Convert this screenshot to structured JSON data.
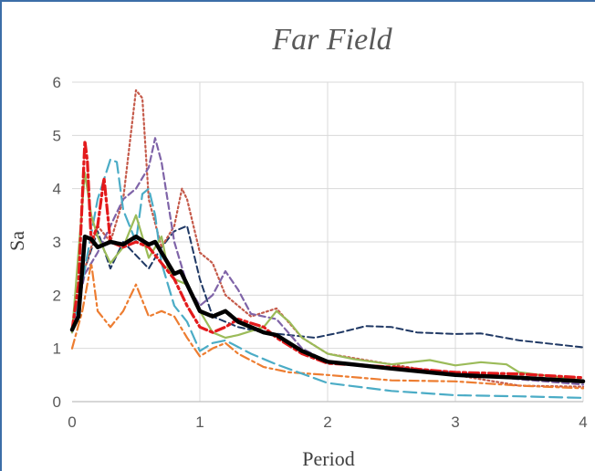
{
  "chart_data": {
    "type": "line",
    "title": "Far Field",
    "xlabel": "Period",
    "ylabel": "Sa",
    "xlim": [
      0,
      4
    ],
    "ylim": [
      0,
      6
    ],
    "x_ticks": [
      "0",
      "1",
      "2",
      "3",
      "4"
    ],
    "y_ticks": [
      "0",
      "1",
      "2",
      "3",
      "4",
      "5",
      "6"
    ],
    "grid": true,
    "legend": "none",
    "series": [
      {
        "color": "#000000",
        "style": "solid",
        "width": 4.5,
        "points": [
          [
            0,
            1.35
          ],
          [
            0.05,
            1.6
          ],
          [
            0.1,
            3.1
          ],
          [
            0.15,
            3.05
          ],
          [
            0.2,
            2.9
          ],
          [
            0.3,
            3.0
          ],
          [
            0.4,
            2.95
          ],
          [
            0.5,
            3.1
          ],
          [
            0.6,
            2.95
          ],
          [
            0.65,
            3.0
          ],
          [
            0.75,
            2.6
          ],
          [
            0.8,
            2.4
          ],
          [
            0.85,
            2.45
          ],
          [
            0.9,
            2.2
          ],
          [
            1.0,
            1.7
          ],
          [
            1.1,
            1.6
          ],
          [
            1.2,
            1.7
          ],
          [
            1.3,
            1.5
          ],
          [
            1.5,
            1.3
          ],
          [
            1.6,
            1.25
          ],
          [
            1.8,
            0.95
          ],
          [
            2.0,
            0.75
          ],
          [
            2.5,
            0.62
          ],
          [
            3.0,
            0.5
          ],
          [
            3.5,
            0.45
          ],
          [
            4.0,
            0.38
          ]
        ]
      },
      {
        "color": "#1f3864",
        "style": "dash",
        "width": 2,
        "points": [
          [
            0,
            1.3
          ],
          [
            0.1,
            2.5
          ],
          [
            0.2,
            3.2
          ],
          [
            0.3,
            2.5
          ],
          [
            0.4,
            3.0
          ],
          [
            0.6,
            2.5
          ],
          [
            0.7,
            2.9
          ],
          [
            0.8,
            3.2
          ],
          [
            0.9,
            3.3
          ],
          [
            0.95,
            2.8
          ],
          [
            1.0,
            2.3
          ],
          [
            1.1,
            1.6
          ],
          [
            1.3,
            1.4
          ],
          [
            1.5,
            1.3
          ],
          [
            1.7,
            1.25
          ],
          [
            1.9,
            1.2
          ],
          [
            2.1,
            1.3
          ],
          [
            2.3,
            1.42
          ],
          [
            2.5,
            1.4
          ],
          [
            2.7,
            1.3
          ],
          [
            3.0,
            1.27
          ],
          [
            3.2,
            1.28
          ],
          [
            3.5,
            1.15
          ],
          [
            4.0,
            1.02
          ]
        ]
      },
      {
        "color": "#c55a4a",
        "style": "dot",
        "width": 2.2,
        "points": [
          [
            0,
            1.3
          ],
          [
            0.1,
            2.5
          ],
          [
            0.2,
            3.3
          ],
          [
            0.3,
            3.0
          ],
          [
            0.4,
            3.8
          ],
          [
            0.5,
            5.85
          ],
          [
            0.55,
            5.7
          ],
          [
            0.6,
            3.8
          ],
          [
            0.7,
            2.9
          ],
          [
            0.8,
            3.3
          ],
          [
            0.86,
            4.0
          ],
          [
            0.9,
            3.8
          ],
          [
            1.0,
            2.8
          ],
          [
            1.1,
            2.6
          ],
          [
            1.2,
            2.0
          ],
          [
            1.4,
            1.6
          ],
          [
            1.6,
            1.75
          ],
          [
            1.8,
            1.2
          ],
          [
            2.0,
            0.9
          ],
          [
            2.5,
            0.7
          ],
          [
            3.0,
            0.5
          ],
          [
            3.5,
            0.3
          ],
          [
            4.0,
            0.28
          ]
        ]
      },
      {
        "color": "#7f64a8",
        "style": "dash",
        "width": 2.2,
        "points": [
          [
            0,
            1.3
          ],
          [
            0.1,
            2.4
          ],
          [
            0.2,
            2.8
          ],
          [
            0.3,
            3.3
          ],
          [
            0.4,
            3.8
          ],
          [
            0.5,
            4.0
          ],
          [
            0.6,
            4.4
          ],
          [
            0.65,
            4.95
          ],
          [
            0.7,
            4.5
          ],
          [
            0.8,
            3.0
          ],
          [
            0.9,
            2.2
          ],
          [
            1.0,
            1.8
          ],
          [
            1.1,
            2.0
          ],
          [
            1.2,
            2.45
          ],
          [
            1.3,
            2.1
          ],
          [
            1.4,
            1.65
          ],
          [
            1.6,
            1.55
          ],
          [
            1.8,
            1.0
          ],
          [
            2.0,
            0.75
          ],
          [
            2.5,
            0.65
          ],
          [
            3.0,
            0.55
          ],
          [
            3.5,
            0.42
          ],
          [
            4.0,
            0.32
          ]
        ]
      },
      {
        "color": "#ed7d31",
        "style": "dashdot",
        "width": 2.2,
        "points": [
          [
            0,
            1.0
          ],
          [
            0.08,
            1.7
          ],
          [
            0.15,
            2.6
          ],
          [
            0.2,
            1.7
          ],
          [
            0.3,
            1.4
          ],
          [
            0.4,
            1.7
          ],
          [
            0.5,
            2.2
          ],
          [
            0.6,
            1.6
          ],
          [
            0.7,
            1.7
          ],
          [
            0.8,
            1.6
          ],
          [
            0.9,
            1.2
          ],
          [
            1.0,
            0.85
          ],
          [
            1.1,
            1.0
          ],
          [
            1.2,
            1.1
          ],
          [
            1.3,
            0.9
          ],
          [
            1.5,
            0.65
          ],
          [
            1.7,
            0.55
          ],
          [
            2.0,
            0.5
          ],
          [
            2.5,
            0.4
          ],
          [
            3.0,
            0.38
          ],
          [
            3.5,
            0.3
          ],
          [
            4.0,
            0.25
          ]
        ]
      },
      {
        "color": "#4bacc6",
        "style": "longdash",
        "width": 2.2,
        "points": [
          [
            0,
            1.3
          ],
          [
            0.1,
            2.5
          ],
          [
            0.2,
            3.8
          ],
          [
            0.3,
            4.55
          ],
          [
            0.35,
            4.5
          ],
          [
            0.4,
            3.6
          ],
          [
            0.5,
            3.0
          ],
          [
            0.55,
            3.9
          ],
          [
            0.6,
            4.0
          ],
          [
            0.65,
            3.5
          ],
          [
            0.7,
            2.6
          ],
          [
            0.8,
            1.8
          ],
          [
            0.9,
            1.5
          ],
          [
            1.0,
            0.95
          ],
          [
            1.1,
            1.1
          ],
          [
            1.2,
            1.15
          ],
          [
            1.4,
            0.9
          ],
          [
            1.6,
            0.7
          ],
          [
            2.0,
            0.35
          ],
          [
            2.5,
            0.2
          ],
          [
            3.0,
            0.12
          ],
          [
            3.5,
            0.1
          ],
          [
            4.0,
            0.07
          ]
        ]
      },
      {
        "color": "#9bbb59",
        "style": "solid",
        "width": 2.2,
        "points": [
          [
            0,
            1.3
          ],
          [
            0.1,
            4.3
          ],
          [
            0.15,
            3.5
          ],
          [
            0.2,
            3.1
          ],
          [
            0.3,
            2.6
          ],
          [
            0.4,
            2.9
          ],
          [
            0.5,
            3.5
          ],
          [
            0.6,
            2.7
          ],
          [
            0.7,
            3.1
          ],
          [
            0.75,
            2.5
          ],
          [
            0.8,
            2.3
          ],
          [
            0.9,
            2.2
          ],
          [
            1.0,
            1.7
          ],
          [
            1.1,
            1.3
          ],
          [
            1.2,
            1.2
          ],
          [
            1.3,
            1.25
          ],
          [
            1.5,
            1.4
          ],
          [
            1.6,
            1.7
          ],
          [
            1.7,
            1.5
          ],
          [
            1.8,
            1.2
          ],
          [
            2.0,
            0.9
          ],
          [
            2.2,
            0.8
          ],
          [
            2.5,
            0.7
          ],
          [
            2.8,
            0.78
          ],
          [
            3.0,
            0.68
          ],
          [
            3.2,
            0.74
          ],
          [
            3.4,
            0.7
          ],
          [
            3.5,
            0.55
          ],
          [
            4.0,
            0.4
          ]
        ]
      },
      {
        "color": "#e31a1c",
        "style": "dashdot",
        "width": 3.2,
        "points": [
          [
            0,
            1.35
          ],
          [
            0.05,
            2.2
          ],
          [
            0.1,
            4.9
          ],
          [
            0.12,
            4.5
          ],
          [
            0.15,
            3.0
          ],
          [
            0.2,
            3.3
          ],
          [
            0.25,
            4.2
          ],
          [
            0.3,
            3.0
          ],
          [
            0.4,
            2.9
          ],
          [
            0.5,
            3.0
          ],
          [
            0.6,
            2.9
          ],
          [
            0.7,
            2.6
          ],
          [
            0.8,
            2.3
          ],
          [
            0.9,
            1.8
          ],
          [
            1.0,
            1.4
          ],
          [
            1.1,
            1.3
          ],
          [
            1.2,
            1.4
          ],
          [
            1.3,
            1.55
          ],
          [
            1.5,
            1.4
          ],
          [
            1.6,
            1.2
          ],
          [
            1.8,
            0.9
          ],
          [
            2.0,
            0.72
          ],
          [
            2.5,
            0.65
          ],
          [
            3.0,
            0.55
          ],
          [
            3.5,
            0.52
          ],
          [
            4.0,
            0.45
          ]
        ]
      }
    ]
  }
}
